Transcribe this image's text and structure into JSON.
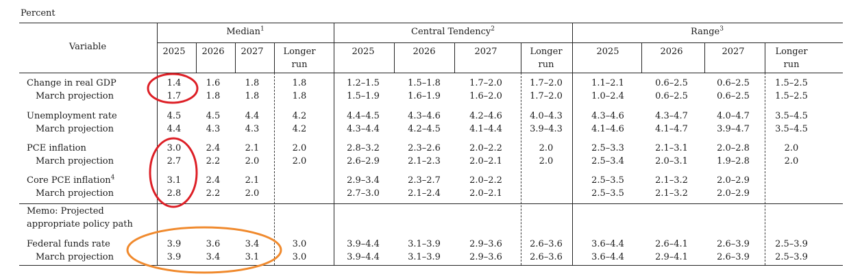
{
  "caption": "Percent",
  "header": {
    "variable": "Variable",
    "groups": [
      {
        "name": "Median",
        "sup": "1"
      },
      {
        "name": "Central Tendency",
        "sup": "2"
      },
      {
        "name": "Range",
        "sup": "3"
      }
    ],
    "cols": [
      "2025",
      "2026",
      "2027"
    ],
    "longer_1": "Longer",
    "longer_2": "run"
  },
  "rows": [
    {
      "label": "Change in real GDP",
      "sup": "",
      "values": [
        "1.4",
        "1.6",
        "1.8",
        "1.8",
        "1.2–1.5",
        "1.5–1.8",
        "1.7–2.0",
        "1.7–2.0",
        "1.1–2.1",
        "0.6–2.5",
        "0.6–2.5",
        "1.5–2.5"
      ]
    },
    {
      "label": "March projection",
      "sup": "",
      "values": [
        "1.7",
        "1.8",
        "1.8",
        "1.8",
        "1.5–1.9",
        "1.6–1.9",
        "1.6–2.0",
        "1.7–2.0",
        "1.0–2.4",
        "0.6–2.5",
        "0.6–2.5",
        "1.5–2.5"
      ]
    },
    {
      "label": "Unemployment rate",
      "sup": "",
      "values": [
        "4.5",
        "4.5",
        "4.4",
        "4.2",
        "4.4–4.5",
        "4.3–4.6",
        "4.2–4.6",
        "4.0–4.3",
        "4.3–4.6",
        "4.3–4.7",
        "4.0–4.7",
        "3.5–4.5"
      ]
    },
    {
      "label": "March projection",
      "sup": "",
      "values": [
        "4.4",
        "4.3",
        "4.3",
        "4.2",
        "4.3–4.4",
        "4.2–4.5",
        "4.1–4.4",
        "3.9–4.3",
        "4.1–4.6",
        "4.1–4.7",
        "3.9–4.7",
        "3.5–4.5"
      ]
    },
    {
      "label": "PCE inflation",
      "sup": "",
      "values": [
        "3.0",
        "2.4",
        "2.1",
        "2.0",
        "2.8–3.2",
        "2.3–2.6",
        "2.0–2.2",
        "2.0",
        "2.5–3.3",
        "2.1–3.1",
        "2.0–2.8",
        "2.0"
      ]
    },
    {
      "label": "March projection",
      "sup": "",
      "values": [
        "2.7",
        "2.2",
        "2.0",
        "2.0",
        "2.6–2.9",
        "2.1–2.3",
        "2.0–2.1",
        "2.0",
        "2.5–3.4",
        "2.0–3.1",
        "1.9–2.8",
        "2.0"
      ]
    },
    {
      "label": "Core PCE inflation",
      "sup": "4",
      "values": [
        "3.1",
        "2.4",
        "2.1",
        "",
        "2.9–3.4",
        "2.3–2.7",
        "2.0–2.2",
        "",
        "2.5–3.5",
        "2.1–3.2",
        "2.0–2.9",
        ""
      ]
    },
    {
      "label": "March projection",
      "sup": "",
      "values": [
        "2.8",
        "2.2",
        "2.0",
        "",
        "2.7–3.0",
        "2.1–2.4",
        "2.0–2.1",
        "",
        "2.5–3.5",
        "2.1–3.2",
        "2.0–2.9",
        ""
      ]
    },
    {
      "label": "Federal funds rate",
      "sup": "",
      "values": [
        "3.9",
        "3.6",
        "3.4",
        "3.0",
        "3.9–4.4",
        "3.1–3.9",
        "2.9–3.6",
        "2.6–3.6",
        "3.6–4.4",
        "2.6–4.1",
        "2.6–3.9",
        "2.5–3.9"
      ]
    },
    {
      "label": "March projection",
      "sup": "",
      "values": [
        "3.9",
        "3.4",
        "3.1",
        "3.0",
        "3.9–4.4",
        "3.1–3.9",
        "2.9–3.6",
        "2.6–3.6",
        "3.6–4.4",
        "2.9–4.1",
        "2.6–3.9",
        "2.5–3.9"
      ]
    }
  ],
  "memo": {
    "line1": "Memo: Projected",
    "line2": "appropriate policy path"
  },
  "annotations": {
    "circle_color_red": "#dd1f26",
    "circle_color_orange": "#f08a2e"
  }
}
